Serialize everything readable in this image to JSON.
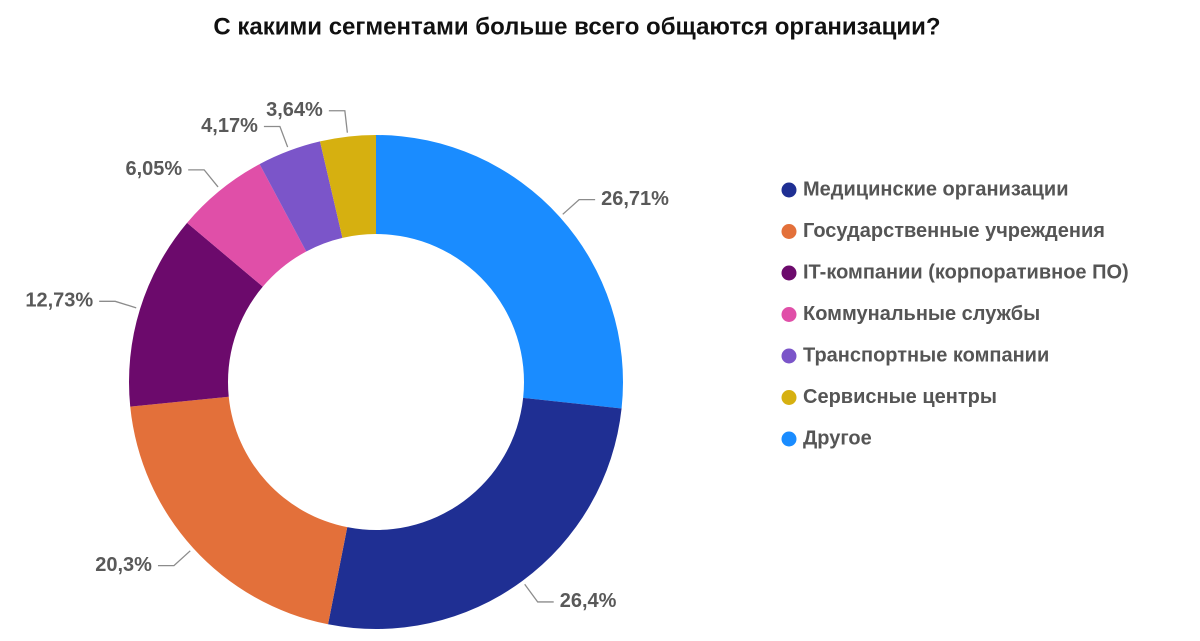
{
  "chart_data": {
    "type": "donut",
    "title": "С какими сегментами больше всего общаются организации?",
    "categories": [
      "Медицинские организации",
      "Государственные учреждения",
      "IT-компании (корпоративное ПО)",
      "Коммунальные службы",
      "Транспортные компании",
      "Сервисные центры",
      "Другое"
    ],
    "values": [
      26.4,
      20.3,
      12.73,
      6.05,
      4.17,
      3.64,
      26.71
    ],
    "value_labels": [
      "26,4%",
      "20,3%",
      "12,73%",
      "6,05%",
      "4,17%",
      "3,64%",
      "26,71%"
    ],
    "colors": [
      "#1f2f93",
      "#e3703a",
      "#6c0a6c",
      "#e04fa8",
      "#7b55c9",
      "#d6b010",
      "#1a8cff"
    ],
    "legend": "right"
  }
}
